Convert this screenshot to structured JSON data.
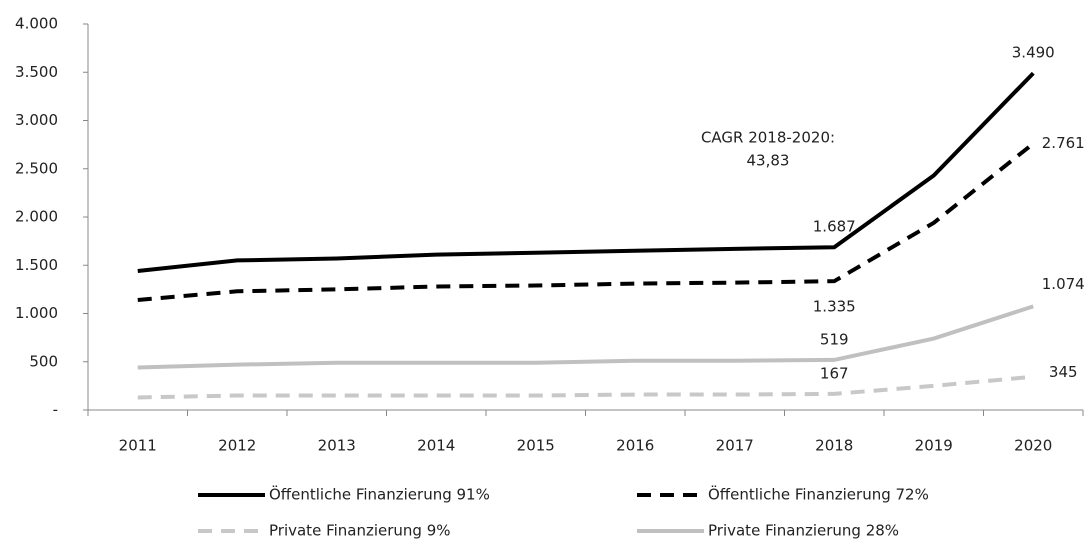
{
  "chart_data": {
    "type": "line",
    "categories": [
      "2011",
      "2012",
      "2013",
      "2014",
      "2015",
      "2016",
      "2017",
      "2018",
      "2019",
      "2020"
    ],
    "series": [
      {
        "name": "Öffentliche Finanzierung 91%",
        "color": "#000000",
        "dashed": false,
        "values": [
          1440,
          1550,
          1570,
          1610,
          1630,
          1650,
          1670,
          1687,
          2430,
          3490
        ],
        "value_labels": [
          null,
          null,
          null,
          null,
          null,
          null,
          null,
          "1.687",
          null,
          "3.490"
        ]
      },
      {
        "name": "Öffentliche Finanzierung 72%",
        "color": "#000000",
        "dashed": true,
        "values": [
          1140,
          1230,
          1250,
          1280,
          1290,
          1310,
          1320,
          1335,
          1940,
          2761
        ],
        "value_labels": [
          null,
          null,
          null,
          null,
          null,
          null,
          null,
          "1.335",
          null,
          "2.761"
        ]
      },
      {
        "name": "Private Finanzierung 9%",
        "color": "#c8c8c8",
        "dashed": true,
        "values": [
          130,
          150,
          150,
          150,
          150,
          160,
          160,
          167,
          250,
          345
        ],
        "value_labels": [
          null,
          null,
          null,
          null,
          null,
          null,
          null,
          "167",
          null,
          "345"
        ]
      },
      {
        "name": "Private Finanzierung 28%",
        "color": "#c0c0c0",
        "dashed": false,
        "values": [
          440,
          470,
          490,
          490,
          490,
          510,
          510,
          519,
          740,
          1074
        ],
        "value_labels": [
          null,
          null,
          null,
          null,
          null,
          null,
          null,
          "519",
          null,
          "1.074"
        ]
      }
    ],
    "annotation": [
      "CAGR 2018-2020:",
      "43,83"
    ],
    "ylim": [
      0,
      4000
    ],
    "yticks": [
      {
        "value": 0,
        "label": "-"
      },
      500,
      {
        "value": 1000,
        "label": "1.000"
      },
      {
        "value": 1500,
        "label": "1.500"
      },
      {
        "value": 2000,
        "label": "2.000"
      },
      {
        "value": 2500,
        "label": "2.500"
      },
      {
        "value": 3000,
        "label": "3.000"
      },
      {
        "value": 3500,
        "label": "3.500"
      },
      {
        "value": 4000,
        "label": "4.000"
      }
    ],
    "grid": false,
    "legend": "bottom"
  }
}
